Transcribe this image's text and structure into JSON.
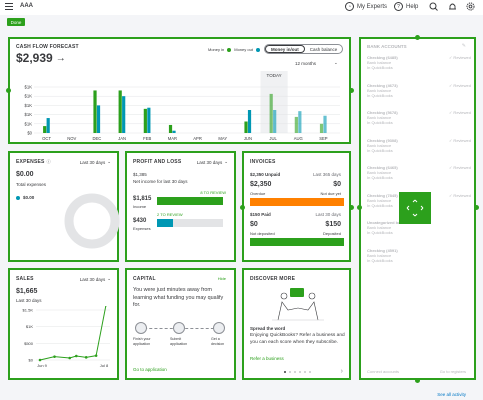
{
  "header": {
    "company": "AAA",
    "my_experts": "My Experts",
    "help": "Help"
  },
  "done_label": "Done",
  "cashflow": {
    "title": "CASH FLOW FORECAST",
    "amount": "$2,939",
    "legend_in": "Money in",
    "legend_out": "Money out",
    "toggle_inout": "Money in/out",
    "toggle_balance": "Cash balance",
    "period": "12 months",
    "today": "TODAY",
    "colors": {
      "money_in": "#2ca01c",
      "money_out": "#0097b3"
    }
  },
  "chart_data": {
    "type": "bar",
    "categories": [
      "OCT",
      "NOV",
      "DEC",
      "JAN",
      "FEB",
      "MAR",
      "APR",
      "MAY",
      "JUN",
      "JUL",
      "AUG",
      "SEP"
    ],
    "series": [
      {
        "name": "Money in",
        "values": [
          300,
          0,
          1850,
          1850,
          1050,
          350,
          0,
          0,
          500,
          1700,
          700,
          400
        ]
      },
      {
        "name": "Money out",
        "values": [
          650,
          0,
          1200,
          1600,
          1100,
          100,
          0,
          0,
          1000,
          1000,
          950,
          750
        ]
      }
    ],
    "yticks": [
      "$1K",
      "$1K",
      "$1K",
      "$1K",
      "$1K",
      "$0"
    ],
    "ylim": [
      0,
      2000
    ]
  },
  "expenses": {
    "title": "EXPENSES",
    "period": "Last 30 days",
    "amount": "$0.00",
    "sub": "Total expenses",
    "item_amount": "$0.00"
  },
  "profit": {
    "title": "PROFIT AND LOSS",
    "period": "Last 30 days",
    "amount": "$1,385",
    "sub": "Net income for last 30 days",
    "income_amount": "$1,815",
    "income_label": "Income",
    "income_review": "8 TO REVIEW",
    "expense_amount": "$430",
    "expense_label": "Expenses",
    "expense_review": "2 TO REVIEW"
  },
  "invoices": {
    "title": "INVOICES",
    "unpaid": "$2,350 Unpaid",
    "unpaid_period": "Last 365 days",
    "overdue_amount": "$2,350",
    "overdue_label": "Overdue",
    "notdue_amount": "$0",
    "notdue_label": "Not due yet",
    "paid": "$150 Paid",
    "paid_period": "Last 30 days",
    "notdeposited_amount": "$0",
    "notdeposited_label": "Not deposited",
    "deposited_amount": "$150",
    "deposited_label": "Deposited"
  },
  "sales": {
    "title": "SALES",
    "period": "Last 30 days",
    "amount": "$1,665",
    "sub": "Last 30 days",
    "yticks": [
      "$1.5K",
      "$1K",
      "$500",
      "$0"
    ],
    "x_start": "Jun 9",
    "x_end": "Jul 8"
  },
  "capital": {
    "title": "CAPITAL",
    "hide": "Hide",
    "text": "You were just minutes away from learning what funding you may qualify for.",
    "steps": [
      "Finish your application",
      "Submit application",
      "Get a decision"
    ],
    "link": "Go to application"
  },
  "discover": {
    "title": "DISCOVER MORE",
    "heading": "Spread the word",
    "text": "Enjoying QuickBooks? Refer a business and you can each score when they subscribe.",
    "link": "Refer a business"
  },
  "bank": {
    "title": "BANK ACCOUNTS",
    "rows": [
      {
        "name": "Checking (6485)",
        "status": "Reviewed"
      },
      {
        "name": "Checking (4673)",
        "status": "Reviewed"
      },
      {
        "name": "Checking (5678)",
        "status": "Reviewed"
      },
      {
        "name": "Checking (9308)",
        "status": "Reviewed"
      },
      {
        "name": "Checking (6465)",
        "status": "Reviewed"
      },
      {
        "name": "Checking (7845)",
        "status": "Reviewed"
      },
      {
        "name": "Uncategorized bank account",
        "status": ""
      },
      {
        "name": "Checking (4591)",
        "status": ""
      }
    ],
    "sub1": "Bank balance",
    "sub2": "In QuickBooks",
    "connect": "Connect accounts",
    "goto": "Go to registers"
  },
  "see_all": "See all activity"
}
